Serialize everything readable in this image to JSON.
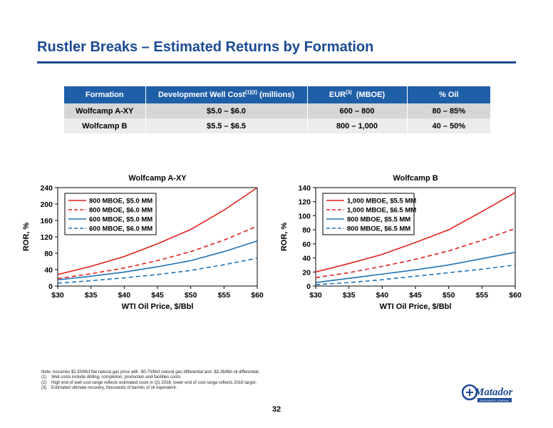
{
  "slide": {
    "title": "Rustler Breaks – Estimated Returns by Formation",
    "page_number": "32",
    "accent_color": "#1b4a93"
  },
  "table": {
    "headers": {
      "formation": "Formation",
      "cost": "Development Well Cost",
      "cost_sup": "(1)(2)",
      "cost_unit": " (millions)",
      "eur": "EUR",
      "eur_sup": "(3)",
      "eur_unit": "  (MBOE)",
      "oil": "% Oil"
    },
    "rows": [
      {
        "formation": "Wolfcamp A-XY",
        "cost": "$5.0 – $6.0",
        "eur": "600 – 800",
        "oil": "80 – 85%"
      },
      {
        "formation": "Wolfcamp B",
        "cost": "$5.5 – $6.5",
        "eur": "800 – 1,000",
        "oil": "40 – 50%"
      }
    ]
  },
  "chart_data": [
    {
      "type": "line",
      "title": "Wolfcamp A-XY",
      "xlabel": "WTI Oil Price, $/Bbl",
      "ylabel": "ROR, %",
      "xlim": [
        30,
        60
      ],
      "ylim": [
        0,
        240
      ],
      "x_ticks": [
        30,
        35,
        40,
        45,
        50,
        55,
        60
      ],
      "x_tick_labels": [
        "$30",
        "$35",
        "$40",
        "$45",
        "$50",
        "$55",
        "$60"
      ],
      "y_ticks": [
        0,
        40,
        80,
        120,
        160,
        200,
        240
      ],
      "y_tick_labels": [
        "0",
        "40",
        "80",
        "120",
        "160",
        "200",
        "240"
      ],
      "grid": false,
      "legend_position": "top-left",
      "x": [
        30,
        35,
        40,
        45,
        50,
        55,
        60
      ],
      "series": [
        {
          "name": "800 MBOE, $5.0 MM",
          "color": "#e0201b",
          "dash": "solid",
          "values": [
            28,
            48,
            72,
            103,
            138,
            185,
            240
          ]
        },
        {
          "name": "800 MBOE, $6.0 MM",
          "color": "#e0201b",
          "dash": "dashed",
          "values": [
            18,
            30,
            44,
            62,
            84,
            112,
            146
          ]
        },
        {
          "name": "600 MBOE, $5.0 MM",
          "color": "#1f73b7",
          "dash": "solid",
          "values": [
            15,
            24,
            34,
            47,
            62,
            84,
            110
          ]
        },
        {
          "name": "600 MBOE, $6.0 MM",
          "color": "#1f73b7",
          "dash": "dashed",
          "values": [
            7,
            13,
            20,
            28,
            38,
            52,
            68
          ]
        }
      ]
    },
    {
      "type": "line",
      "title": "Wolfcamp B",
      "xlabel": "WTI Oil Price, $/Bbl",
      "ylabel": "ROR, %",
      "xlim": [
        30,
        60
      ],
      "ylim": [
        0,
        140
      ],
      "x_ticks": [
        30,
        35,
        40,
        45,
        50,
        55,
        60
      ],
      "x_tick_labels": [
        "$30",
        "$35",
        "$40",
        "$45",
        "$50",
        "$55",
        "$60"
      ],
      "y_ticks": [
        0,
        20,
        40,
        60,
        80,
        100,
        120,
        140
      ],
      "y_tick_labels": [
        "0",
        "20",
        "40",
        "60",
        "80",
        "100",
        "120",
        "140"
      ],
      "grid": false,
      "legend_position": "top-left",
      "x": [
        30,
        35,
        40,
        45,
        50,
        55,
        60
      ],
      "series": [
        {
          "name": "1,000 MBOE, $5.5 MM",
          "color": "#e0201b",
          "dash": "solid",
          "values": [
            20,
            32,
            45,
            62,
            80,
            106,
            133
          ]
        },
        {
          "name": "1,000 MBOE, $6.5 MM",
          "color": "#e0201b",
          "dash": "dashed",
          "values": [
            12,
            19,
            28,
            38,
            50,
            65,
            82
          ]
        },
        {
          "name": "800 MBOE, $5.5 MM",
          "color": "#1f73b7",
          "dash": "solid",
          "values": [
            5,
            11,
            17,
            23,
            30,
            39,
            48
          ]
        },
        {
          "name": "800 MBOE, $6.5 MM",
          "color": "#1f73b7",
          "dash": "dashed",
          "values": [
            2,
            5,
            9,
            14,
            19,
            24,
            30
          ]
        }
      ]
    }
  ],
  "footnotes": {
    "note": "Note:  Assumes $2.50/Mcf flat natural gas price with -$0.70/Mcf natural gas differential and -$3.26/Bbl oil differential.",
    "items": [
      {
        "num": "(1)",
        "text": "Well costs include drilling, completion, production and facilities costs."
      },
      {
        "num": "(2)",
        "text": "High end of well cost range reflects estimated costs in Q1 2016; lower end of cost range reflects 2016 target."
      },
      {
        "num": "(3)",
        "text": "Estimated ultimate recovery, thousands of barrels of oil equivalent."
      }
    ]
  },
  "logo": {
    "text": "Matador",
    "subtext": "RESOURCES COMPANY",
    "icon": "matador-logo-icon",
    "color": "#1b4a93"
  }
}
